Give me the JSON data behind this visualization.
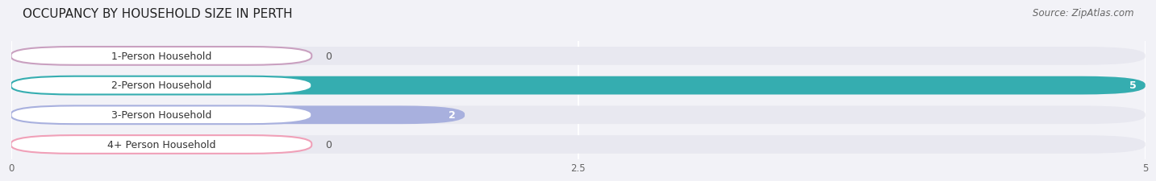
{
  "title": "OCCUPANCY BY HOUSEHOLD SIZE IN PERTH",
  "source": "Source: ZipAtlas.com",
  "categories": [
    "1-Person Household",
    "2-Person Household",
    "3-Person Household",
    "4+ Person Household"
  ],
  "values": [
    0,
    5,
    2,
    0
  ],
  "bar_colors": [
    "#c9a0c0",
    "#35adb0",
    "#a8b0de",
    "#f0a0b8"
  ],
  "xlim": [
    0,
    5
  ],
  "xticks": [
    0,
    2.5,
    5
  ],
  "background_color": "#f2f2f7",
  "bar_bg_color": "#e8e8f0",
  "title_fontsize": 11,
  "source_fontsize": 8.5,
  "label_fontsize": 9,
  "value_fontsize": 9
}
